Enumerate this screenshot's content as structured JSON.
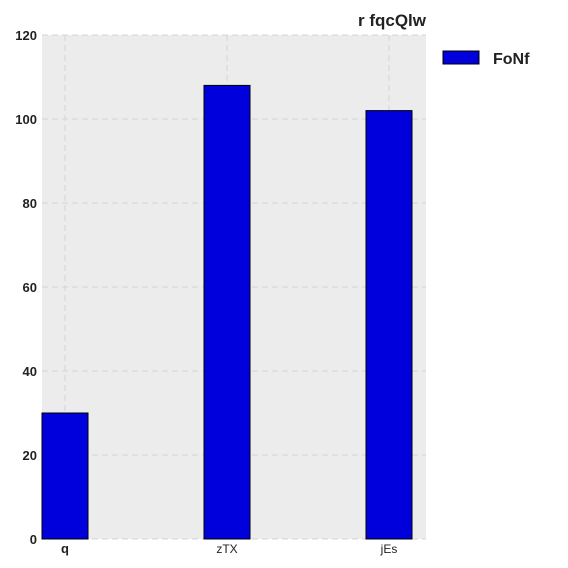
{
  "chart_data": {
    "type": "bar",
    "title": "r fqcQlw",
    "categories": [
      "q",
      "zTX",
      "jEs"
    ],
    "series": [
      {
        "name": "FoNf",
        "values": [
          30,
          108,
          102
        ],
        "color": "#0000dd"
      }
    ],
    "ylim": [
      0,
      120
    ],
    "yticks": [
      0,
      20,
      40,
      60,
      80,
      100,
      120
    ],
    "xlabel": "",
    "ylabel": "",
    "grid": true,
    "legend_position": "outside-top-right",
    "background_color": "#ececec",
    "grid_color": "#d4d4d4"
  }
}
